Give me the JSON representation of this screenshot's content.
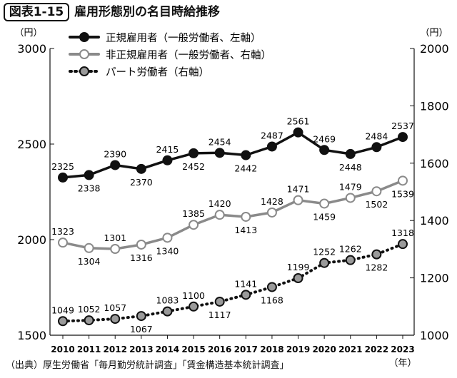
{
  "figure": {
    "label": "図表1-15",
    "title": "雇用形態別の名目時給推移",
    "source": "（出典）厚生労働省「毎月勤労統計調査」「賃金構造基本統計調査」"
  },
  "chart_data": {
    "type": "line",
    "x": [
      2010,
      2011,
      2012,
      2013,
      2014,
      2015,
      2016,
      2017,
      2018,
      2019,
      2020,
      2021,
      2022,
      2023
    ],
    "x_tick_labels": [
      "2010",
      "2011",
      "2012",
      "2013",
      "2014",
      "2015",
      "2016",
      "2017",
      "2018",
      "2019",
      "2020",
      "2021",
      "2022",
      "2023"
    ],
    "xlabel": "（年）",
    "left_axis": {
      "unit": "（円）",
      "ylim": [
        1500,
        3000
      ],
      "ticks": [
        1500,
        2000,
        2500,
        3000
      ]
    },
    "right_axis": {
      "unit": "（円）",
      "ylim": [
        1000,
        2000
      ],
      "ticks": [
        1000,
        1200,
        1400,
        1600,
        1800,
        2000
      ]
    },
    "grid": false,
    "legend_position": "top-center",
    "series": [
      {
        "name": "正規雇用者（一般労働者、左軸）",
        "axis": "left",
        "style": "solid-dark",
        "color": "#111111",
        "marker_fill": "#111111",
        "values": [
          2325,
          2338,
          2390,
          2370,
          2415,
          2452,
          2454,
          2442,
          2487,
          2561,
          2469,
          2448,
          2484,
          2537
        ],
        "label_pos": [
          "above",
          "below",
          "above",
          "below",
          "above",
          "below",
          "above",
          "below",
          "above",
          "above",
          "above",
          "below",
          "above",
          "above"
        ]
      },
      {
        "name": "非正規雇用者（一般労働者、右軸）",
        "axis": "right",
        "style": "solid-gray",
        "color": "#8a8a8a",
        "marker_fill": "#ffffff",
        "values": [
          1323,
          1304,
          1301,
          1316,
          1340,
          1385,
          1420,
          1413,
          1428,
          1471,
          1459,
          1479,
          1502,
          1539
        ],
        "label_pos": [
          "above",
          "below",
          "above",
          "below",
          "below",
          "above",
          "above",
          "below",
          "above",
          "above",
          "below",
          "above",
          "below",
          "below"
        ]
      },
      {
        "name": "パート労働者（右軸）",
        "axis": "right",
        "style": "dotted",
        "color": "#111111",
        "marker_fill": "#9a9a9a",
        "values": [
          1049,
          1052,
          1057,
          1067,
          1083,
          1100,
          1117,
          1141,
          1168,
          1199,
          1252,
          1262,
          1282,
          1318
        ],
        "label_pos": [
          "above",
          "above",
          "above",
          "below",
          "above",
          "above",
          "below",
          "above",
          "below",
          "above",
          "above",
          "above",
          "below",
          "above"
        ]
      }
    ]
  }
}
